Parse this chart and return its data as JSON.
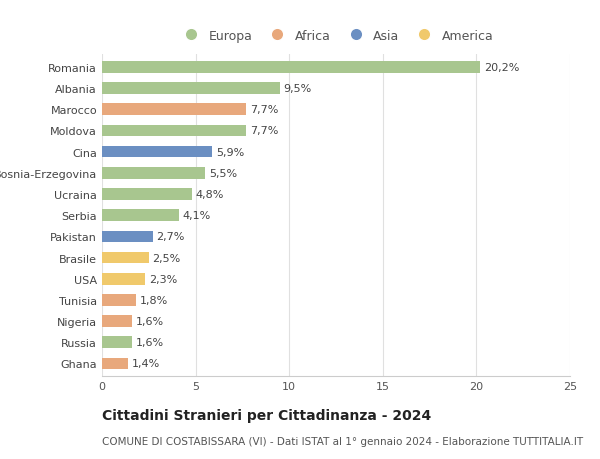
{
  "categories": [
    "Romania",
    "Albania",
    "Marocco",
    "Moldova",
    "Cina",
    "Bosnia-Erzegovina",
    "Ucraina",
    "Serbia",
    "Pakistan",
    "Brasile",
    "USA",
    "Tunisia",
    "Nigeria",
    "Russia",
    "Ghana"
  ],
  "values": [
    20.2,
    9.5,
    7.7,
    7.7,
    5.9,
    5.5,
    4.8,
    4.1,
    2.7,
    2.5,
    2.3,
    1.8,
    1.6,
    1.6,
    1.4
  ],
  "regions": [
    "Europa",
    "Europa",
    "Africa",
    "Europa",
    "Asia",
    "Europa",
    "Europa",
    "Europa",
    "Asia",
    "America",
    "America",
    "Africa",
    "Africa",
    "Europa",
    "Africa"
  ],
  "colors": {
    "Europa": "#a8c68f",
    "Africa": "#e8a87c",
    "Asia": "#6b8fc2",
    "America": "#f0c96b"
  },
  "legend_order": [
    "Europa",
    "Africa",
    "Asia",
    "America"
  ],
  "xlim": [
    0,
    25
  ],
  "xticks": [
    0,
    5,
    10,
    15,
    20,
    25
  ],
  "title": "Cittadini Stranieri per Cittadinanza - 2024",
  "subtitle": "COMUNE DI COSTABISSARA (VI) - Dati ISTAT al 1° gennaio 2024 - Elaborazione TUTTITALIA.IT",
  "bg_color": "#ffffff",
  "bar_height": 0.55,
  "label_fontsize": 8,
  "title_fontsize": 10,
  "subtitle_fontsize": 7.5,
  "ytick_fontsize": 8,
  "xtick_fontsize": 8,
  "legend_fontsize": 9
}
